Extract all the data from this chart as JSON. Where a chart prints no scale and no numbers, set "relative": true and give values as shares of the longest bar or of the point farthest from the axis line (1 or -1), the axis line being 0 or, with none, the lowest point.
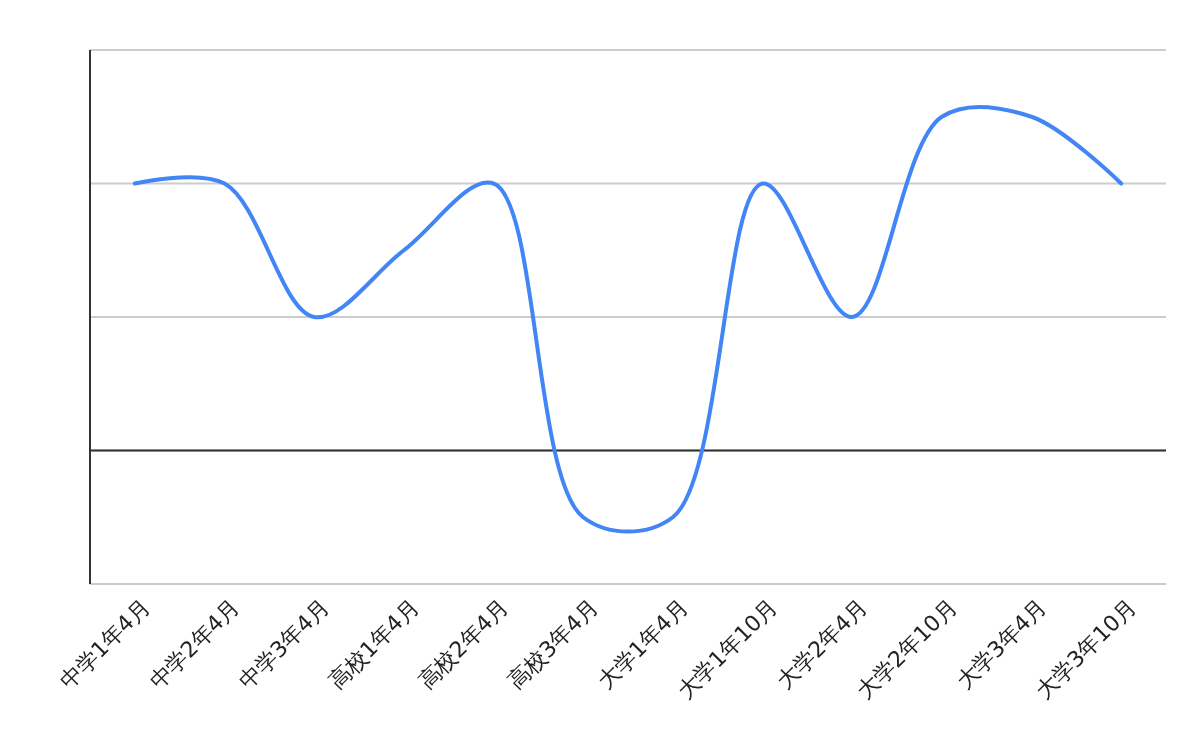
{
  "chart_data": {
    "type": "line",
    "relative": true,
    "grid": "y",
    "categories": [
      "中学1年4月",
      "中学2年4月",
      "中学3年4月",
      "高校1年4月",
      "高校2年4月",
      "高校3年4月",
      "大学1年4月",
      "大学1年10月",
      "大学2年4月",
      "大学2年10月",
      "大学3年4月",
      "大学3年10月"
    ],
    "series": [
      {
        "color": "#4285f4",
        "values": [
          0.8,
          0.8,
          0.4,
          0.6,
          0.8,
          -0.2,
          -0.2,
          0.8,
          0.4,
          1,
          1,
          0.8
        ]
      }
    ]
  }
}
